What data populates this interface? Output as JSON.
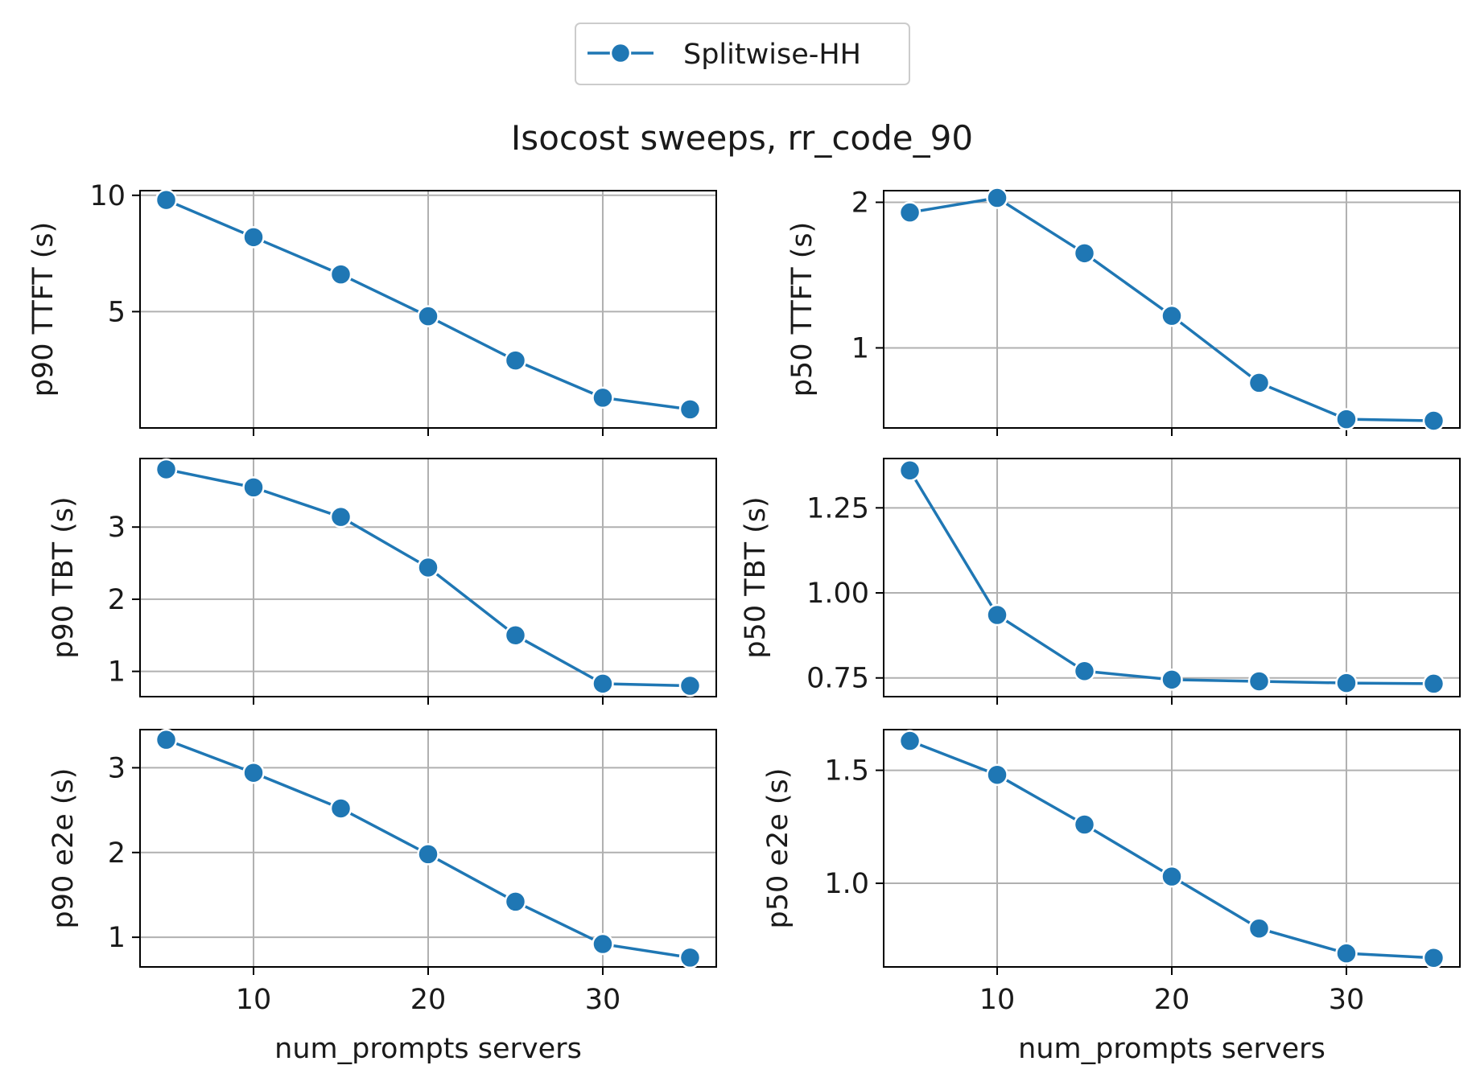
{
  "figure": {
    "title": "Isocost sweeps, rr_code_90",
    "legend": {
      "entries": [
        "Splitwise-HH"
      ],
      "placement": "top-center"
    },
    "colors": {
      "series": "#1f77b4",
      "grid": "#b0b0b0",
      "frame": "#000000"
    }
  },
  "chart_data": [
    {
      "type": "line",
      "ylabel": "p90 TTFT (s)",
      "xlabel": "",
      "xlim": [
        3.5,
        36.5
      ],
      "ylim": [
        0.0,
        10.2
      ],
      "xticks": [
        10,
        20,
        30
      ],
      "yticks": [
        5,
        10
      ],
      "ytick_labels": [
        "5",
        "10"
      ],
      "show_xtick_labels": false,
      "grid": true,
      "series": [
        {
          "name": "Splitwise-HH",
          "x": [
            5,
            10,
            15,
            20,
            25,
            30,
            35
          ],
          "y": [
            9.8,
            8.2,
            6.6,
            4.8,
            2.9,
            1.3,
            0.8
          ]
        }
      ]
    },
    {
      "type": "line",
      "ylabel": "p50 TTFT (s)",
      "xlabel": "",
      "xlim": [
        3.5,
        36.5
      ],
      "ylim": [
        0.45,
        2.08
      ],
      "xticks": [
        10,
        20,
        30
      ],
      "yticks": [
        1,
        2
      ],
      "ytick_labels": [
        "1",
        "2"
      ],
      "show_xtick_labels": false,
      "grid": true,
      "series": [
        {
          "name": "Splitwise-HH",
          "x": [
            5,
            10,
            15,
            20,
            25,
            30,
            35
          ],
          "y": [
            1.93,
            2.03,
            1.65,
            1.22,
            0.76,
            0.51,
            0.5
          ]
        }
      ]
    },
    {
      "type": "line",
      "ylabel": "p90 TBT (s)",
      "xlabel": "",
      "xlim": [
        3.5,
        36.5
      ],
      "ylim": [
        0.65,
        3.95
      ],
      "xticks": [
        10,
        20,
        30
      ],
      "yticks": [
        1,
        2,
        3
      ],
      "ytick_labels": [
        "1",
        "2",
        "3"
      ],
      "show_xtick_labels": false,
      "grid": true,
      "series": [
        {
          "name": "Splitwise-HH",
          "x": [
            5,
            10,
            15,
            20,
            25,
            30,
            35
          ],
          "y": [
            3.8,
            3.55,
            3.14,
            2.44,
            1.5,
            0.83,
            0.8
          ]
        }
      ]
    },
    {
      "type": "line",
      "ylabel": "p50 TBT (s)",
      "xlabel": "",
      "xlim": [
        3.5,
        36.5
      ],
      "ylim": [
        0.695,
        1.395
      ],
      "xticks": [
        10,
        20,
        30
      ],
      "yticks": [
        0.75,
        1.0,
        1.25
      ],
      "ytick_labels": [
        "0.75",
        "1.00",
        "1.25"
      ],
      "show_xtick_labels": false,
      "grid": true,
      "series": [
        {
          "name": "Splitwise-HH",
          "x": [
            5,
            10,
            15,
            20,
            25,
            30,
            35
          ],
          "y": [
            1.36,
            0.935,
            0.77,
            0.745,
            0.74,
            0.735,
            0.733
          ]
        }
      ]
    },
    {
      "type": "line",
      "ylabel": "p90 e2e (s)",
      "xlabel": "num_prompts servers",
      "xlim": [
        3.5,
        36.5
      ],
      "ylim": [
        0.65,
        3.45
      ],
      "xticks": [
        10,
        20,
        30
      ],
      "yticks": [
        1,
        2,
        3
      ],
      "ytick_labels": [
        "1",
        "2",
        "3"
      ],
      "show_xtick_labels": true,
      "grid": true,
      "series": [
        {
          "name": "Splitwise-HH",
          "x": [
            5,
            10,
            15,
            20,
            25,
            30,
            35
          ],
          "y": [
            3.33,
            2.94,
            2.52,
            1.98,
            1.42,
            0.92,
            0.76
          ]
        }
      ]
    },
    {
      "type": "line",
      "ylabel": "p50 e2e (s)",
      "xlabel": "num_prompts servers",
      "xlim": [
        3.5,
        36.5
      ],
      "ylim": [
        0.63,
        1.68
      ],
      "xticks": [
        10,
        20,
        30
      ],
      "yticks": [
        1.0,
        1.5
      ],
      "ytick_labels": [
        "1.0",
        "1.5"
      ],
      "show_xtick_labels": true,
      "grid": true,
      "series": [
        {
          "name": "Splitwise-HH",
          "x": [
            5,
            10,
            15,
            20,
            25,
            30,
            35
          ],
          "y": [
            1.63,
            1.48,
            1.26,
            1.03,
            0.8,
            0.69,
            0.67
          ]
        }
      ]
    }
  ]
}
